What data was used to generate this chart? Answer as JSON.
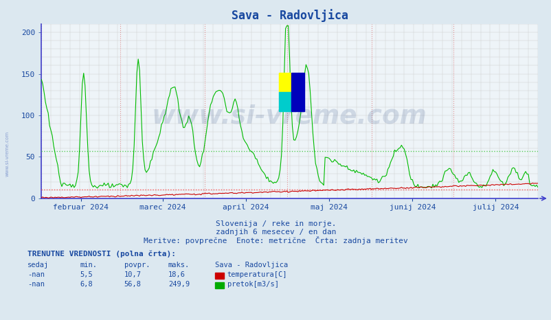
{
  "title": "Sava - Radovljica",
  "bg_color": "#dce8f0",
  "plot_bg_color": "#eef4f8",
  "title_color": "#1848a0",
  "ylim": [
    0,
    210
  ],
  "yticks": [
    0,
    50,
    100,
    150,
    200
  ],
  "line_temp_color": "#cc0000",
  "line_flow_color": "#00bb00",
  "hline_temp_avg_val": 10.7,
  "hline_flow_avg_val": 56.8,
  "hline_temp_color": "#ff5555",
  "hline_flow_color": "#55cc55",
  "watermark_text": "www.si-vreme.com",
  "watermark_color": "#183878",
  "watermark_alpha": 0.15,
  "subtitle1": "Slovenija / reke in morje.",
  "subtitle2": "zadnjih 6 mesecev / en dan",
  "subtitle3": "Meritve: povprečne  Enote: metrične  Črta: zadnja meritev",
  "subtitle_color": "#1848a0",
  "legend_title": "TRENUTNE VREDNOSTI (polna črta):",
  "legend_headers": [
    "sedaj",
    "min.",
    "povpr.",
    "maks.",
    "Sava - Radovljica"
  ],
  "legend_row1": [
    "-nan",
    "5,5",
    "10,7",
    "18,6",
    "temperatura[C]"
  ],
  "legend_row2": [
    "-nan",
    "6,8",
    "56,8",
    "249,9",
    "pretok[m3/s]"
  ],
  "legend_color": "#1848a0",
  "xaxis_labels": [
    "februar 2024",
    "marec 2024",
    "april 2024",
    "maj 2024",
    "junij 2024",
    "julij 2024"
  ],
  "xaxis_label_color": "#1848a0",
  "axis_color": "#1848a0",
  "spine_left_color": "#4040cc",
  "spine_bottom_color": "#4040cc",
  "vline_color": "#dd8888",
  "hgrid_color": "#cccccc",
  "vgrid_color": "#cccccc",
  "n_points": 365,
  "flow_max_display": 210,
  "temp_max_display": 20
}
